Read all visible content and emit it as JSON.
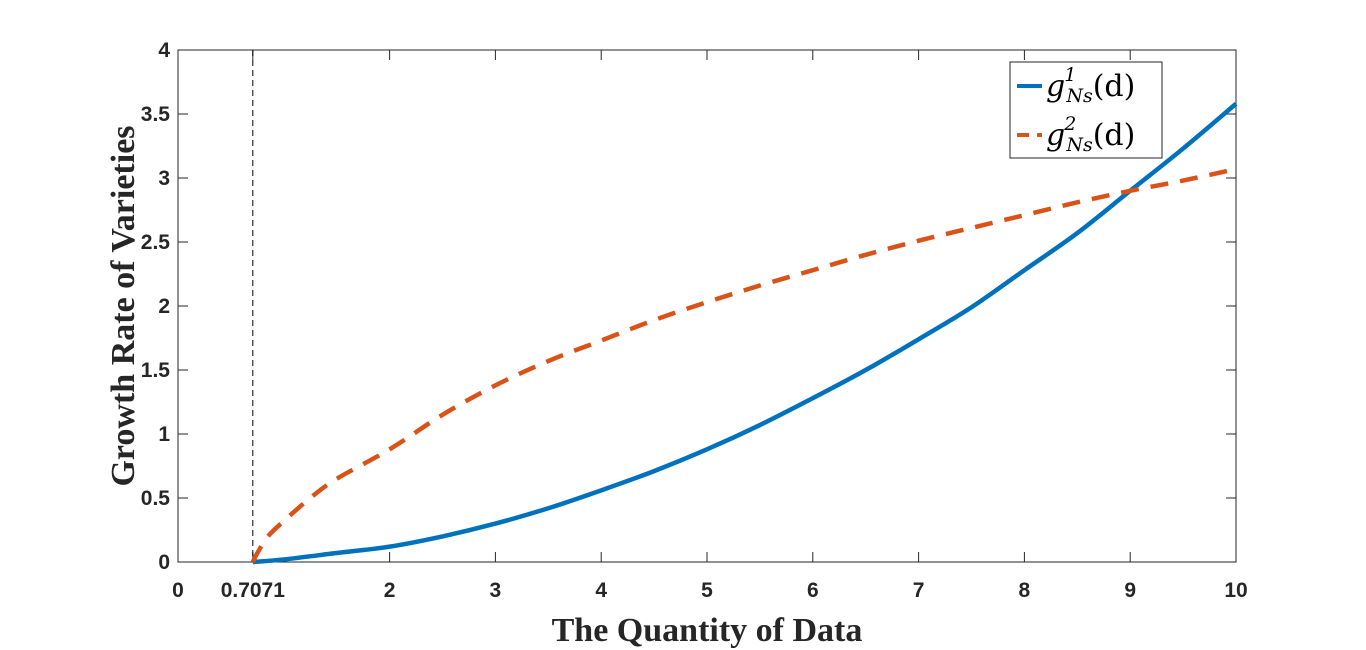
{
  "chart_data": {
    "type": "line",
    "xlabel": "The Quantity of Data",
    "ylabel": "Growth Rate of Varieties",
    "xlim": [
      0,
      10
    ],
    "ylim": [
      0,
      4
    ],
    "xticks": [
      0,
      0.7071,
      2,
      3,
      4,
      5,
      6,
      7,
      8,
      9,
      10
    ],
    "xtick_labels": [
      "0",
      "0.7071",
      "2",
      "3",
      "4",
      "5",
      "6",
      "7",
      "8",
      "9",
      "10"
    ],
    "yticks": [
      0,
      0.5,
      1,
      1.5,
      2,
      2.5,
      3,
      3.5,
      4
    ],
    "ytick_labels": [
      "0",
      "0.5",
      "1",
      "1.5",
      "2",
      "2.5",
      "3",
      "3.5",
      "4"
    ],
    "grid": false,
    "legend_position": "top-right",
    "vline": {
      "x": 0.7071,
      "style": "dashed",
      "color": "#000000"
    },
    "series": [
      {
        "name_base": "g",
        "name_sup": "1",
        "name_sub": "Ns",
        "name_arg": "(d)",
        "style": "solid",
        "color": "#0072BD",
        "x": [
          0.7071,
          1,
          1.5,
          2,
          2.5,
          3,
          3.5,
          4,
          4.5,
          5,
          5.5,
          6,
          6.5,
          7,
          7.5,
          8,
          8.5,
          9,
          9.5,
          10
        ],
        "y": [
          0,
          0.02,
          0.07,
          0.12,
          0.2,
          0.3,
          0.42,
          0.56,
          0.71,
          0.88,
          1.07,
          1.28,
          1.5,
          1.74,
          1.99,
          2.28,
          2.57,
          2.9,
          3.23,
          3.58
        ]
      },
      {
        "name_base": "g",
        "name_sup": "2",
        "name_sub": "Ns",
        "name_arg": "(d)",
        "style": "dashed",
        "color": "#D95319",
        "x": [
          0.7071,
          0.75,
          0.85,
          1,
          1.25,
          1.5,
          2,
          2.5,
          3,
          3.5,
          4,
          4.5,
          5,
          5.5,
          6,
          6.5,
          7,
          7.5,
          8,
          8.5,
          9,
          9.5,
          10
        ],
        "y": [
          0,
          0.07,
          0.2,
          0.32,
          0.5,
          0.65,
          0.88,
          1.15,
          1.38,
          1.57,
          1.73,
          1.89,
          2.03,
          2.16,
          2.28,
          2.4,
          2.51,
          2.61,
          2.71,
          2.81,
          2.9,
          2.98,
          3.07
        ]
      }
    ]
  }
}
